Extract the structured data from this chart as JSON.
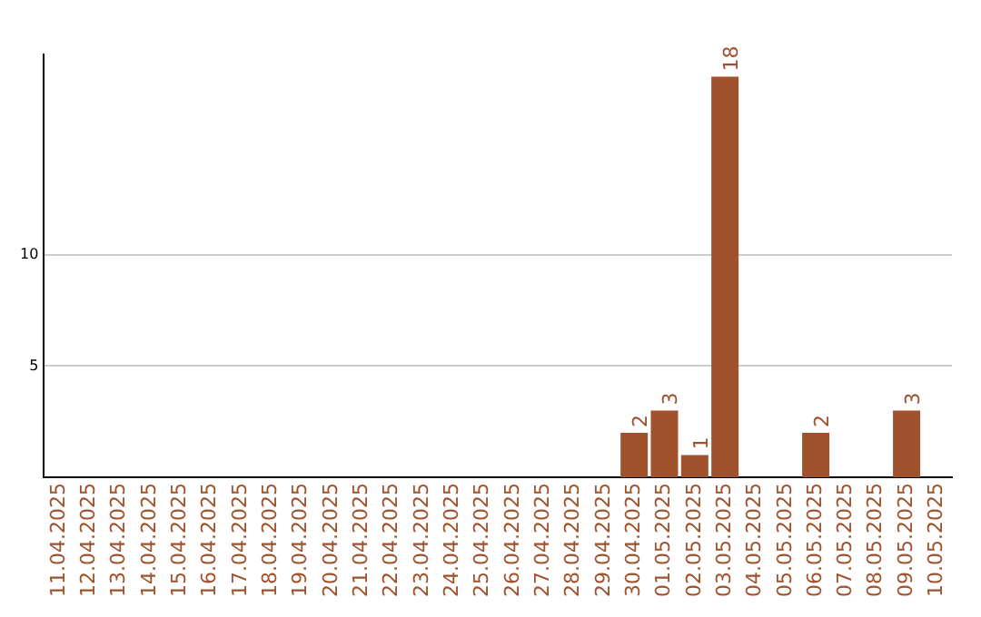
{
  "chart_data": {
    "type": "bar",
    "categories": [
      "11.04.2025",
      "12.04.2025",
      "13.04.2025",
      "14.04.2025",
      "15.04.2025",
      "16.04.2025",
      "17.04.2025",
      "18.04.2025",
      "19.04.2025",
      "20.04.2025",
      "21.04.2025",
      "22.04.2025",
      "23.04.2025",
      "24.04.2025",
      "25.04.2025",
      "26.04.2025",
      "27.04.2025",
      "28.04.2025",
      "29.04.2025",
      "30.04.2025",
      "01.05.2025",
      "02.05.2025",
      "03.05.2025",
      "04.05.2025",
      "05.05.2025",
      "06.05.2025",
      "07.05.2025",
      "08.05.2025",
      "09.05.2025",
      "10.05.2025"
    ],
    "values": [
      0,
      0,
      0,
      0,
      0,
      0,
      0,
      0,
      0,
      0,
      0,
      0,
      0,
      0,
      0,
      0,
      0,
      0,
      0,
      2,
      3,
      1,
      18,
      0,
      0,
      2,
      0,
      0,
      3,
      0
    ],
    "value_labels": [
      null,
      null,
      null,
      null,
      null,
      null,
      null,
      null,
      null,
      null,
      null,
      null,
      null,
      null,
      null,
      null,
      null,
      null,
      null,
      "2",
      "3",
      "1",
      "18",
      null,
      null,
      "2",
      null,
      null,
      "3",
      null
    ],
    "color": "#a0522d",
    "ylim": [
      0,
      19
    ],
    "yticks": [
      5,
      10
    ],
    "grid": "y",
    "legend": false
  }
}
